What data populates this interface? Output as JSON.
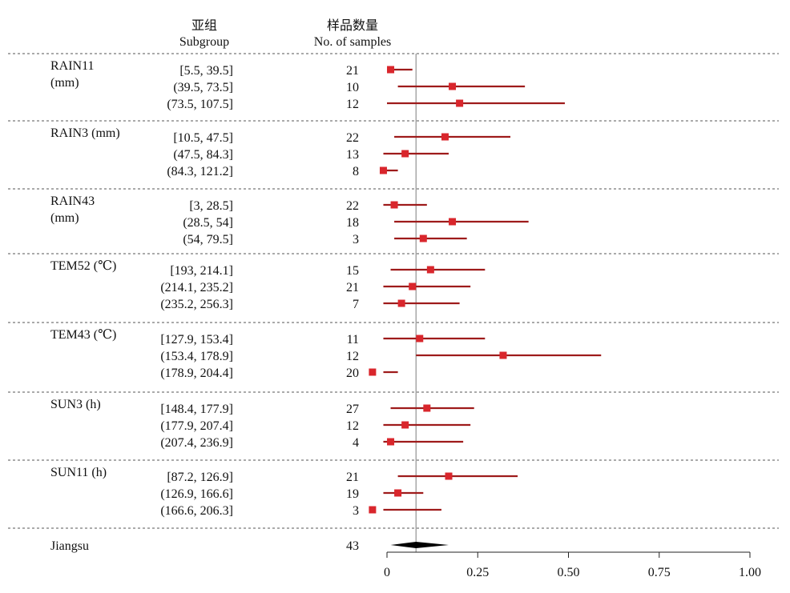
{
  "chart_data": {
    "type": "forest",
    "header": {
      "subgroup_cn": "亚组",
      "subgroup_en": "Subgroup",
      "samples_cn": "样品数量",
      "samples_en": "No. of samples"
    },
    "groups": [
      {
        "label_lines": [
          "RAIN11",
          "(mm)"
        ],
        "rows": [
          {
            "interval": "[5.5, 39.5]",
            "n": "21",
            "estimate": 0.01,
            "lower": 0.0,
            "upper": 0.07
          },
          {
            "interval": "(39.5, 73.5]",
            "n": "10",
            "estimate": 0.18,
            "lower": 0.03,
            "upper": 0.38
          },
          {
            "interval": "(73.5, 107.5]",
            "n": "12",
            "estimate": 0.2,
            "lower": 0.0,
            "upper": 0.49
          }
        ]
      },
      {
        "label_lines": [
          "RAIN3 (mm)"
        ],
        "rows": [
          {
            "interval": "[10.5, 47.5]",
            "n": "22",
            "estimate": 0.16,
            "lower": 0.02,
            "upper": 0.34
          },
          {
            "interval": "(47.5, 84.3]",
            "n": "13",
            "estimate": 0.05,
            "lower": -0.01,
            "upper": 0.17
          },
          {
            "interval": "(84.3, 121.2]",
            "n": "8",
            "estimate": -0.01,
            "lower": -0.01,
            "upper": 0.03
          }
        ]
      },
      {
        "label_lines": [
          "RAIN43",
          "(mm)"
        ],
        "rows": [
          {
            "interval": "[3, 28.5]",
            "n": "22",
            "estimate": 0.02,
            "lower": -0.01,
            "upper": 0.11
          },
          {
            "interval": "(28.5, 54]",
            "n": "18",
            "estimate": 0.18,
            "lower": 0.02,
            "upper": 0.39
          },
          {
            "interval": "(54, 79.5]",
            "n": "3",
            "estimate": 0.1,
            "lower": 0.02,
            "upper": 0.22
          }
        ]
      },
      {
        "label_lines": [
          "TEM52 (℃)"
        ],
        "rows": [
          {
            "interval": "[193, 214.1]",
            "n": "15",
            "estimate": 0.12,
            "lower": 0.01,
            "upper": 0.27
          },
          {
            "interval": "(214.1, 235.2]",
            "n": "21",
            "estimate": 0.07,
            "lower": -0.01,
            "upper": 0.23
          },
          {
            "interval": "(235.2, 256.3]",
            "n": "7",
            "estimate": 0.04,
            "lower": -0.01,
            "upper": 0.2
          }
        ]
      },
      {
        "label_lines": [
          "TEM43 (℃)"
        ],
        "rows": [
          {
            "interval": "[127.9, 153.4]",
            "n": "11",
            "estimate": 0.09,
            "lower": -0.01,
            "upper": 0.27
          },
          {
            "interval": "(153.4, 178.9]",
            "n": "12",
            "estimate": 0.32,
            "lower": 0.08,
            "upper": 0.59
          },
          {
            "interval": "(178.9, 204.4]",
            "n": "20",
            "estimate": -0.04,
            "lower": -0.01,
            "upper": 0.03
          }
        ]
      },
      {
        "label_lines": [
          "SUN3 (h)"
        ],
        "rows": [
          {
            "interval": "[148.4, 177.9]",
            "n": "27",
            "estimate": 0.11,
            "lower": 0.01,
            "upper": 0.24
          },
          {
            "interval": "(177.9, 207.4]",
            "n": "12",
            "estimate": 0.05,
            "lower": -0.01,
            "upper": 0.23
          },
          {
            "interval": "(207.4, 236.9]",
            "n": "4",
            "estimate": 0.01,
            "lower": -0.01,
            "upper": 0.21
          }
        ]
      },
      {
        "label_lines": [
          "SUN11 (h)"
        ],
        "rows": [
          {
            "interval": "[87.2, 126.9]",
            "n": "21",
            "estimate": 0.17,
            "lower": 0.03,
            "upper": 0.36
          },
          {
            "interval": "(126.9, 166.6]",
            "n": "19",
            "estimate": 0.03,
            "lower": -0.01,
            "upper": 0.1
          },
          {
            "interval": "(166.6, 206.3]",
            "n": "3",
            "estimate": -0.04,
            "lower": -0.01,
            "upper": 0.15
          }
        ]
      }
    ],
    "overall": {
      "label": "Jiangsu",
      "n": "43",
      "estimate": 0.08,
      "lower": 0.01,
      "upper": 0.17
    },
    "reference_line": 0.08,
    "x_axis": {
      "min": 0,
      "max": 1.0,
      "ticks": [
        0,
        0.25,
        0.5,
        0.75,
        1.0
      ],
      "tick_labels": [
        "0",
        "0.25",
        "0.50",
        "0.75",
        "1.00"
      ]
    },
    "colors": {
      "ci_line": "#9e1b1b",
      "point": "#d9262c",
      "reference": "#9a9a9a",
      "overall_diamond": "#000000",
      "separator": "#555555"
    }
  }
}
